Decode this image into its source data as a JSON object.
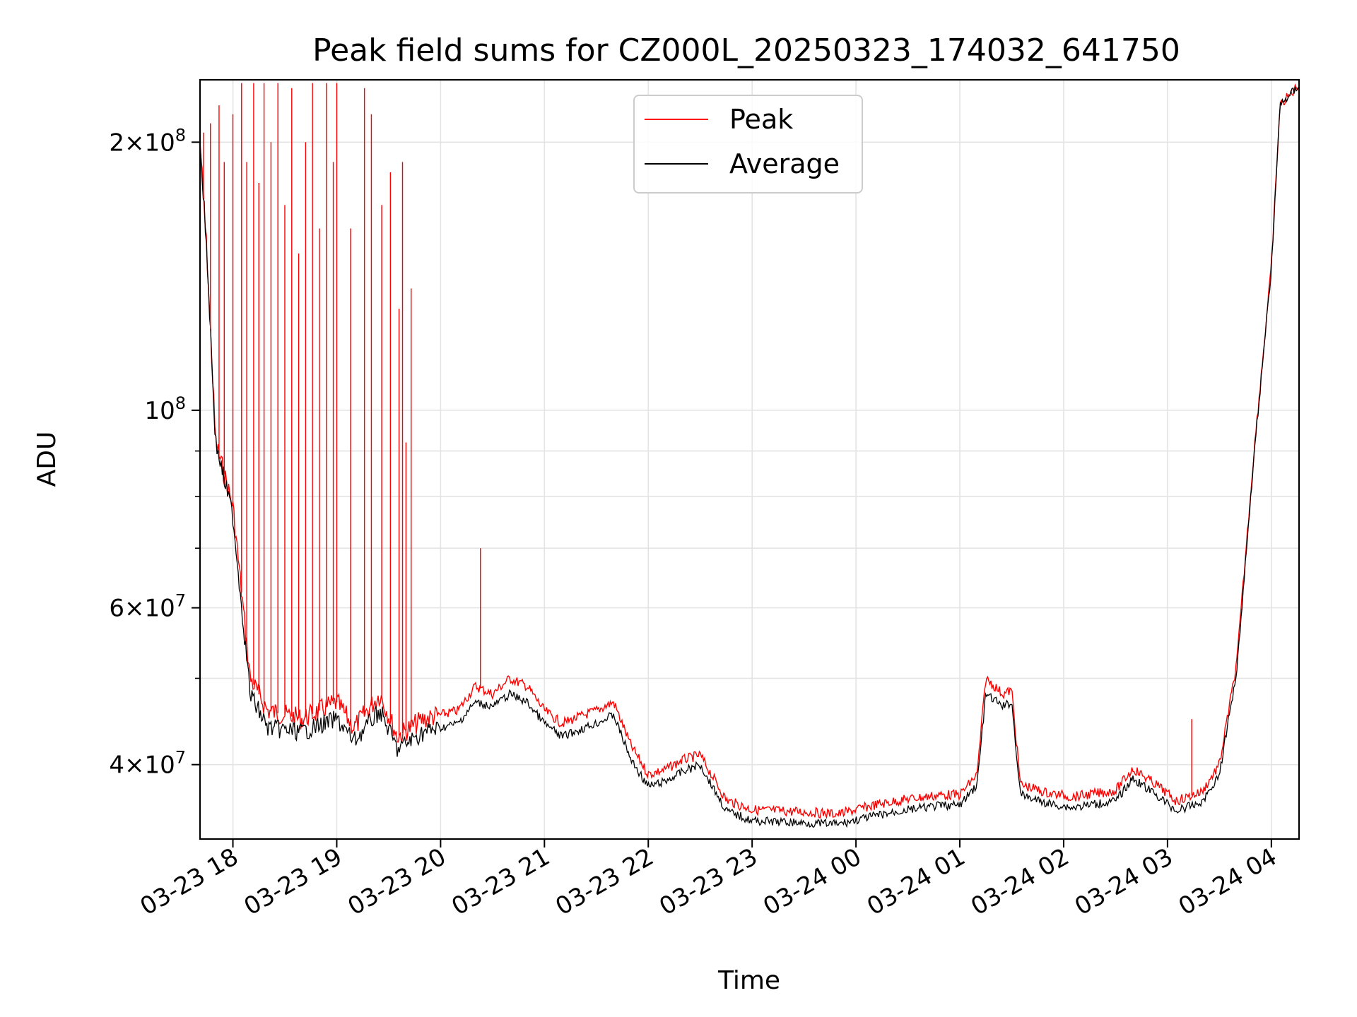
{
  "chart_data": {
    "type": "line",
    "title": "Peak field sums for CZ000L_20250323_174032_641750",
    "xlabel": "Time",
    "ylabel": "ADU",
    "y_scale": "log",
    "ylim": [
      33000000,
      235000000
    ],
    "xlim": [
      "2025-03-23 17:41",
      "2025-03-24 04:16"
    ],
    "grid": true,
    "legend_position": "top-center",
    "x_ticks": [
      {
        "t": "2025-03-23 18:00",
        "label": "03-23 18"
      },
      {
        "t": "2025-03-23 19:00",
        "label": "03-23 19"
      },
      {
        "t": "2025-03-23 20:00",
        "label": "03-23 20"
      },
      {
        "t": "2025-03-23 21:00",
        "label": "03-23 21"
      },
      {
        "t": "2025-03-23 22:00",
        "label": "03-23 22"
      },
      {
        "t": "2025-03-23 23:00",
        "label": "03-23 23"
      },
      {
        "t": "2025-03-24 00:00",
        "label": "03-24 00"
      },
      {
        "t": "2025-03-24 01:00",
        "label": "03-24 01"
      },
      {
        "t": "2025-03-24 02:00",
        "label": "03-24 02"
      },
      {
        "t": "2025-03-24 03:00",
        "label": "03-24 03"
      },
      {
        "t": "2025-03-24 04:00",
        "label": "03-24 04"
      }
    ],
    "y_major_ticks": [
      {
        "value": 40000000,
        "mantissa": "4",
        "exponent": "7"
      },
      {
        "value": 60000000,
        "mantissa": "6",
        "exponent": "7"
      },
      {
        "value": 100000000,
        "mantissa": "",
        "exponent": "8"
      },
      {
        "value": 200000000,
        "mantissa": "2",
        "exponent": "8"
      }
    ],
    "y_minor_ticks": [
      50000000,
      70000000,
      80000000,
      90000000
    ],
    "series": [
      {
        "name": "Peak",
        "color": "#ff0000",
        "points": [
          [
            "2025-03-23 17:41",
            200000000
          ],
          [
            "2025-03-23 17:45",
            150000000
          ],
          [
            "2025-03-23 17:50",
            92000000
          ],
          [
            "2025-03-23 18:00",
            78000000
          ],
          [
            "2025-03-23 18:10",
            50000000
          ],
          [
            "2025-03-23 18:20",
            46000000
          ],
          [
            "2025-03-23 18:40",
            45000000
          ],
          [
            "2025-03-23 19:00",
            47000000
          ],
          [
            "2025-03-23 19:10",
            44000000
          ],
          [
            "2025-03-23 19:25",
            48000000
          ],
          [
            "2025-03-23 19:35",
            43000000
          ],
          [
            "2025-03-23 19:50",
            45000000
          ],
          [
            "2025-03-23 20:10",
            46000000
          ],
          [
            "2025-03-23 20:20",
            49000000
          ],
          [
            "2025-03-23 20:30",
            48000000
          ],
          [
            "2025-03-23 20:40",
            50000000
          ],
          [
            "2025-03-23 20:50",
            49000000
          ],
          [
            "2025-03-23 21:00",
            46000000
          ],
          [
            "2025-03-23 21:10",
            44500000
          ],
          [
            "2025-03-23 21:30",
            46000000
          ],
          [
            "2025-03-23 21:40",
            47000000
          ],
          [
            "2025-03-23 21:50",
            42000000
          ],
          [
            "2025-03-23 22:00",
            39000000
          ],
          [
            "2025-03-23 22:10",
            39500000
          ],
          [
            "2025-03-23 22:20",
            40500000
          ],
          [
            "2025-03-23 22:30",
            41000000
          ],
          [
            "2025-03-23 22:45",
            36500000
          ],
          [
            "2025-03-23 23:00",
            35600000
          ],
          [
            "2025-03-23 23:30",
            35400000
          ],
          [
            "2025-03-23 23:50",
            35200000
          ],
          [
            "2025-03-24 00:10",
            36000000
          ],
          [
            "2025-03-24 00:30",
            36600000
          ],
          [
            "2025-03-24 00:50",
            37000000
          ],
          [
            "2025-03-24 01:00",
            37000000
          ],
          [
            "2025-03-24 01:10",
            39000000
          ],
          [
            "2025-03-24 01:15",
            50000000
          ],
          [
            "2025-03-24 01:25",
            48000000
          ],
          [
            "2025-03-24 01:30",
            48500000
          ],
          [
            "2025-03-24 01:35",
            38000000
          ],
          [
            "2025-03-24 01:50",
            37200000
          ],
          [
            "2025-03-24 02:05",
            36800000
          ],
          [
            "2025-03-24 02:30",
            37400000
          ],
          [
            "2025-03-24 02:40",
            39600000
          ],
          [
            "2025-03-24 02:55",
            37800000
          ],
          [
            "2025-03-24 03:05",
            36400000
          ],
          [
            "2025-03-24 03:20",
            37300000
          ],
          [
            "2025-03-24 03:30",
            40000000
          ],
          [
            "2025-03-24 03:40",
            52000000
          ],
          [
            "2025-03-24 03:50",
            90000000
          ],
          [
            "2025-03-24 04:00",
            145000000
          ],
          [
            "2025-03-24 04:05",
            220000000
          ],
          [
            "2025-03-24 04:16",
            232000000
          ]
        ],
        "spikes": [
          [
            "2025-03-23 17:43",
            205000000
          ],
          [
            "2025-03-23 17:47",
            210000000
          ],
          [
            "2025-03-23 17:52",
            220000000
          ],
          [
            "2025-03-23 17:55",
            190000000
          ],
          [
            "2025-03-23 18:00",
            215000000
          ],
          [
            "2025-03-23 18:05",
            233000000
          ],
          [
            "2025-03-23 18:08",
            190000000
          ],
          [
            "2025-03-23 18:12",
            233000000
          ],
          [
            "2025-03-23 18:15",
            180000000
          ],
          [
            "2025-03-23 18:18",
            233000000
          ],
          [
            "2025-03-23 18:22",
            200000000
          ],
          [
            "2025-03-23 18:26",
            233000000
          ],
          [
            "2025-03-23 18:30",
            170000000
          ],
          [
            "2025-03-23 18:34",
            230000000
          ],
          [
            "2025-03-23 18:38",
            150000000
          ],
          [
            "2025-03-23 18:42",
            200000000
          ],
          [
            "2025-03-23 18:46",
            233000000
          ],
          [
            "2025-03-23 18:50",
            160000000
          ],
          [
            "2025-03-23 18:54",
            233000000
          ],
          [
            "2025-03-23 18:58",
            190000000
          ],
          [
            "2025-03-23 19:00",
            233000000
          ],
          [
            "2025-03-23 19:08",
            160000000
          ],
          [
            "2025-03-23 19:16",
            230000000
          ],
          [
            "2025-03-23 19:20",
            215000000
          ],
          [
            "2025-03-23 19:26",
            170000000
          ],
          [
            "2025-03-23 19:31",
            185000000
          ],
          [
            "2025-03-23 19:36",
            130000000
          ],
          [
            "2025-03-23 19:38",
            190000000
          ],
          [
            "2025-03-23 19:40",
            92000000
          ],
          [
            "2025-03-23 19:43",
            137000000
          ],
          [
            "2025-03-23 20:23",
            70000000
          ],
          [
            "2025-03-24 03:14",
            45000000
          ]
        ]
      },
      {
        "name": "Average",
        "color": "#000000",
        "points": [
          [
            "2025-03-23 17:41",
            200000000
          ],
          [
            "2025-03-23 17:45",
            150000000
          ],
          [
            "2025-03-23 17:50",
            92000000
          ],
          [
            "2025-03-23 18:00",
            76000000
          ],
          [
            "2025-03-23 18:10",
            48000000
          ],
          [
            "2025-03-23 18:20",
            44000000
          ],
          [
            "2025-03-23 18:40",
            43500000
          ],
          [
            "2025-03-23 19:00",
            45000000
          ],
          [
            "2025-03-23 19:10",
            42500000
          ],
          [
            "2025-03-23 19:25",
            46000000
          ],
          [
            "2025-03-23 19:35",
            41600000
          ],
          [
            "2025-03-23 19:50",
            43500000
          ],
          [
            "2025-03-23 20:10",
            44500000
          ],
          [
            "2025-03-23 20:20",
            47000000
          ],
          [
            "2025-03-23 20:30",
            46500000
          ],
          [
            "2025-03-23 20:40",
            48000000
          ],
          [
            "2025-03-23 20:50",
            47000000
          ],
          [
            "2025-03-23 21:00",
            44500000
          ],
          [
            "2025-03-23 21:10",
            43000000
          ],
          [
            "2025-03-23 21:30",
            44500000
          ],
          [
            "2025-03-23 21:40",
            45500000
          ],
          [
            "2025-03-23 21:50",
            40500000
          ],
          [
            "2025-03-23 22:00",
            37800000
          ],
          [
            "2025-03-23 22:10",
            38300000
          ],
          [
            "2025-03-23 22:20",
            39300000
          ],
          [
            "2025-03-23 22:30",
            40000000
          ],
          [
            "2025-03-23 22:45",
            35500000
          ],
          [
            "2025-03-23 23:00",
            34600000
          ],
          [
            "2025-03-23 23:30",
            34400000
          ],
          [
            "2025-03-23 23:50",
            34300000
          ],
          [
            "2025-03-24 00:10",
            35000000
          ],
          [
            "2025-03-24 00:30",
            35600000
          ],
          [
            "2025-03-24 00:50",
            36000000
          ],
          [
            "2025-03-24 01:00",
            36000000
          ],
          [
            "2025-03-24 01:10",
            38000000
          ],
          [
            "2025-03-24 01:15",
            48000000
          ],
          [
            "2025-03-24 01:25",
            46500000
          ],
          [
            "2025-03-24 01:30",
            47000000
          ],
          [
            "2025-03-24 01:35",
            37000000
          ],
          [
            "2025-03-24 01:50",
            36200000
          ],
          [
            "2025-03-24 02:05",
            35800000
          ],
          [
            "2025-03-24 02:30",
            36400000
          ],
          [
            "2025-03-24 02:40",
            38600000
          ],
          [
            "2025-03-24 02:55",
            36800000
          ],
          [
            "2025-03-24 03:05",
            35500000
          ],
          [
            "2025-03-24 03:20",
            36300000
          ],
          [
            "2025-03-24 03:30",
            39000000
          ],
          [
            "2025-03-24 03:40",
            51000000
          ],
          [
            "2025-03-24 03:50",
            89000000
          ],
          [
            "2025-03-24 04:00",
            144000000
          ],
          [
            "2025-03-24 04:05",
            220000000
          ],
          [
            "2025-03-24 04:16",
            232000000
          ]
        ]
      }
    ]
  }
}
